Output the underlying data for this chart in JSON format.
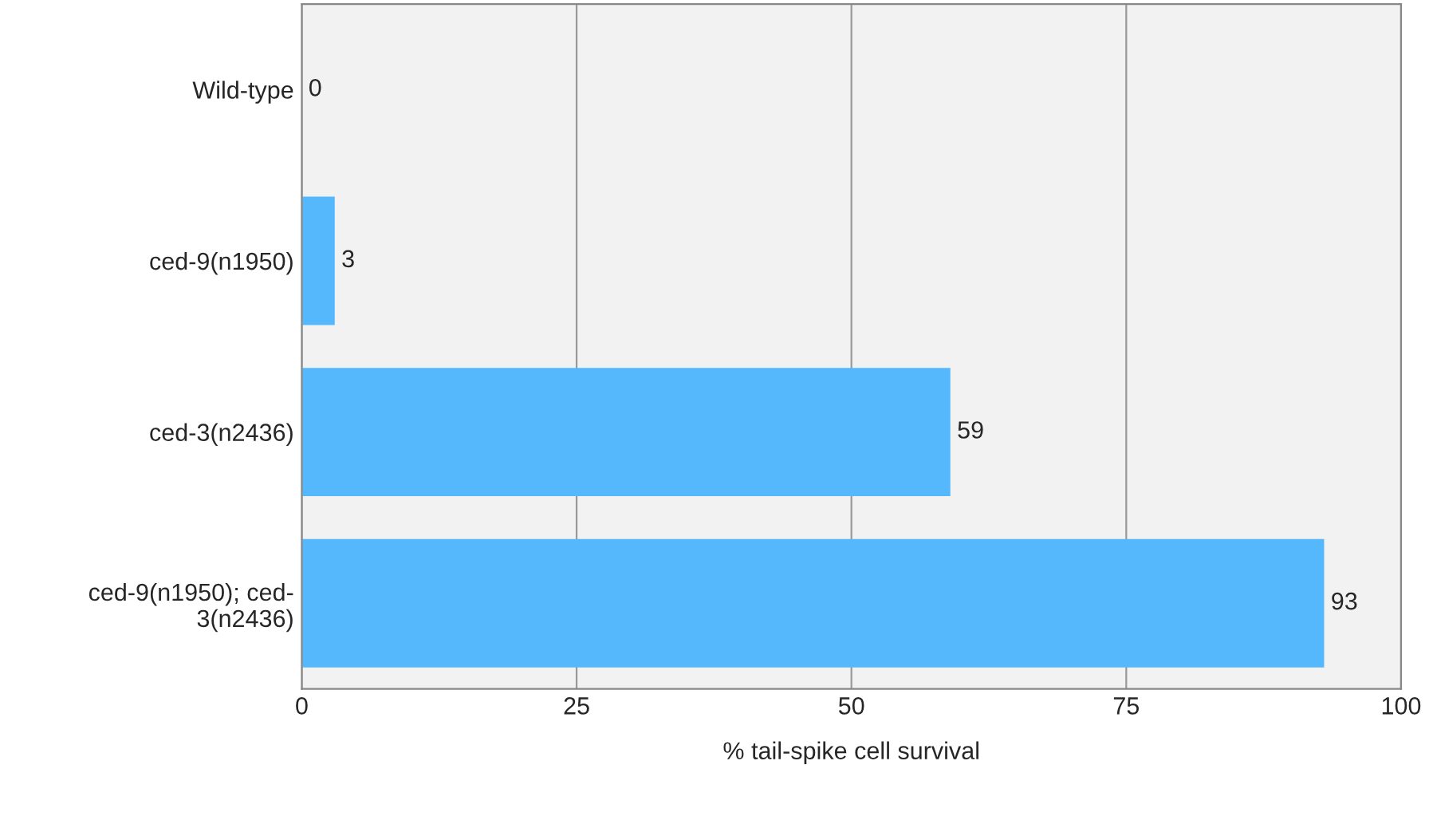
{
  "chart_data": {
    "type": "bar",
    "orientation": "horizontal",
    "categories": [
      "Wild-type",
      "ced-9(n1950)",
      "ced-3(n2436)",
      "ced-9(n1950); ced-\n3(n2436)"
    ],
    "values": [
      0,
      3,
      59,
      93
    ],
    "color": "#55b8fc",
    "xlim": [
      0,
      100
    ],
    "xticks": [
      0,
      25,
      50,
      75,
      100
    ],
    "xlabel": "% tail-spike cell survival",
    "grid": "x",
    "data_labels": true,
    "legend": false
  }
}
